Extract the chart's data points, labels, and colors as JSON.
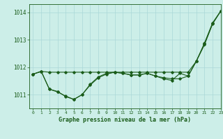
{
  "title": "Graphe pression niveau de la mer (hPa)",
  "background_color": "#cceee8",
  "grid_color": "#aad8d8",
  "line_color": "#1a5c1a",
  "xlim": [
    -0.5,
    23
  ],
  "ylim": [
    1010.5,
    1014.3
  ],
  "yticks": [
    1011,
    1012,
    1013,
    1014
  ],
  "xticks": [
    0,
    1,
    2,
    3,
    4,
    5,
    6,
    7,
    8,
    9,
    10,
    11,
    12,
    13,
    14,
    15,
    16,
    17,
    18,
    19,
    20,
    21,
    22,
    23
  ],
  "series": [
    [
      1011.75,
      1011.85,
      1011.82,
      1011.82,
      1011.82,
      1011.82,
      1011.82,
      1011.82,
      1011.82,
      1011.82,
      1011.82,
      1011.82,
      1011.82,
      1011.82,
      1011.82,
      1011.82,
      1011.82,
      1011.82,
      1011.82,
      1011.82,
      1012.22,
      1012.85,
      1013.6,
      1014.05
    ],
    [
      1011.75,
      1011.85,
      1011.2,
      1011.1,
      1010.95,
      1010.83,
      1011.0,
      1011.38,
      1011.65,
      1011.78,
      1011.82,
      1011.78,
      1011.72,
      1011.72,
      1011.78,
      1011.68,
      1011.62,
      1011.58,
      1011.58,
      1011.68,
      1012.22,
      1012.82,
      1013.58,
      1014.05
    ],
    [
      1011.75,
      1011.85,
      1011.2,
      1011.12,
      1010.93,
      1010.83,
      1011.0,
      1011.35,
      1011.62,
      1011.75,
      1011.82,
      1011.78,
      1011.72,
      1011.72,
      1011.78,
      1011.68,
      1011.58,
      1011.52,
      1011.78,
      1011.68,
      1012.22,
      1012.88,
      1013.62,
      1014.05
    ]
  ]
}
